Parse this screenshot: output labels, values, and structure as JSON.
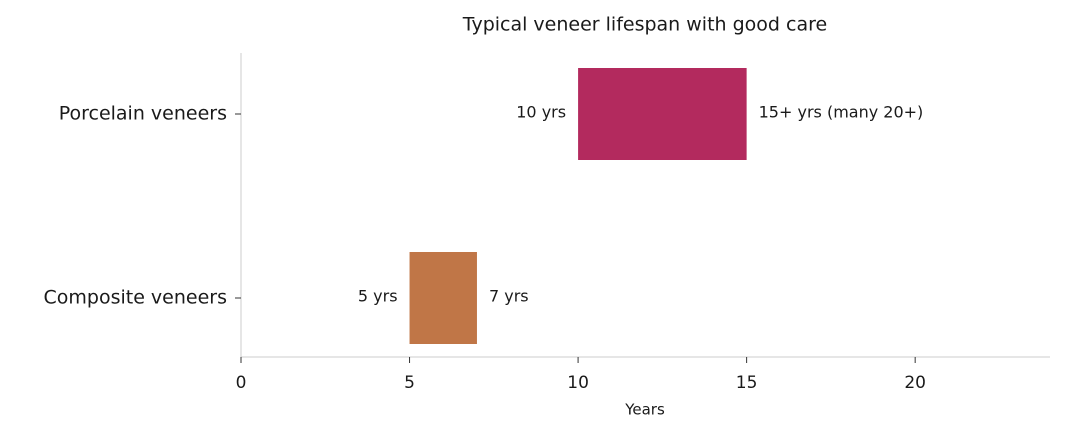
{
  "chart_data": {
    "type": "range_bar",
    "title": "Typical veneer lifespan with good care",
    "xlabel": "Years",
    "categories": [
      "Porcelain veneers",
      "Composite veneers"
    ],
    "starts": [
      10,
      5
    ],
    "ends": [
      15,
      7
    ],
    "start_value_labels": [
      "10 yrs",
      "5 yrs"
    ],
    "end_value_labels": [
      "15+ yrs (many 20+)",
      "7 yrs"
    ],
    "colors": [
      "#b32a5e",
      "#c07647"
    ],
    "xlim": [
      0,
      24
    ],
    "xticks": [
      0,
      5,
      10,
      15,
      20
    ]
  }
}
